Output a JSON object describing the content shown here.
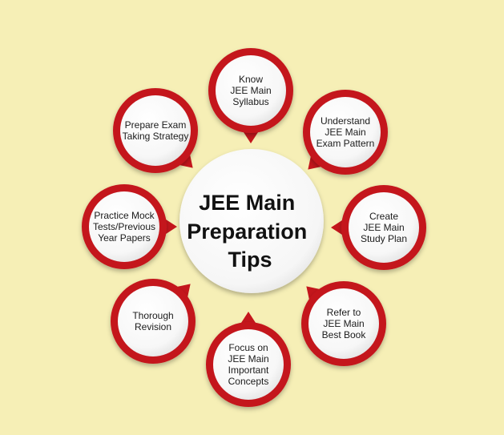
{
  "background_color": "#f6efb6",
  "accent_color": "#c4161c",
  "center": {
    "lines": [
      "JEE Main",
      "Preparation",
      "Tips"
    ]
  },
  "tips": [
    {
      "id": "know-syllabus",
      "lines": [
        "Know",
        "JEE Main",
        "Syllabus"
      ]
    },
    {
      "id": "exam-pattern",
      "lines": [
        "Understand",
        "JEE Main",
        "Exam Pattern"
      ]
    },
    {
      "id": "study-plan",
      "lines": [
        "Create",
        "JEE Main",
        "Study Plan"
      ]
    },
    {
      "id": "best-book",
      "lines": [
        "Refer to",
        "JEE Main",
        "Best Book"
      ]
    },
    {
      "id": "important-concepts",
      "lines": [
        "Focus on",
        "JEE Main",
        "Important",
        "Concepts"
      ]
    },
    {
      "id": "thorough-revision",
      "lines": [
        "Thorough",
        "Revision"
      ]
    },
    {
      "id": "mock-tests",
      "lines": [
        "Practice Mock",
        "Tests/Previous",
        "Year Papers"
      ]
    },
    {
      "id": "exam-strategy",
      "lines": [
        "Prepare Exam",
        "Taking Strategy"
      ]
    }
  ]
}
